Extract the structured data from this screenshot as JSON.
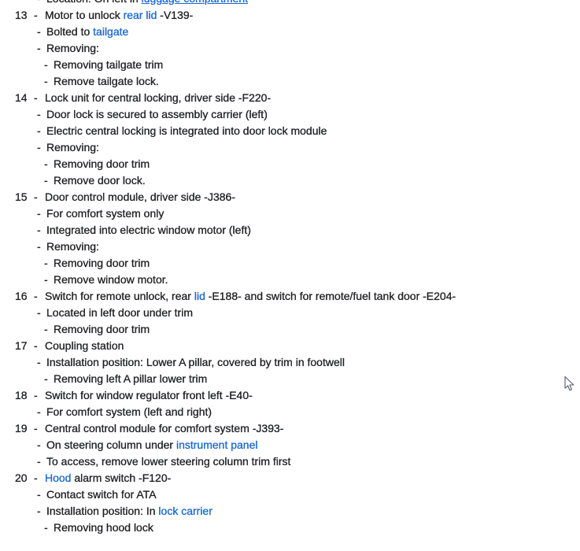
{
  "page": {
    "background": "#ffffff",
    "text_color": "#202124",
    "link_color": "#1967d2"
  },
  "cursor": {
    "icon": "arrow-pointer-icon"
  },
  "list": {
    "lines": [
      {
        "type": "sub1",
        "clipped": true,
        "segments": [
          {
            "t": "Location: On left in "
          },
          {
            "t": "luggage compartment",
            "link": true,
            "underline": true
          }
        ]
      },
      {
        "type": "item",
        "num": "13",
        "segments": [
          {
            "t": "Motor to unlock "
          },
          {
            "t": "rear lid",
            "link": true
          },
          {
            "t": " -V139-"
          }
        ]
      },
      {
        "type": "sub1",
        "segments": [
          {
            "t": "Bolted to "
          },
          {
            "t": "tailgate",
            "link": true
          }
        ]
      },
      {
        "type": "sub1",
        "segments": [
          {
            "t": "Removing:"
          }
        ]
      },
      {
        "type": "sub2",
        "segments": [
          {
            "t": "Removing tailgate trim"
          }
        ]
      },
      {
        "type": "sub2",
        "segments": [
          {
            "t": "Remove tailgate lock."
          }
        ]
      },
      {
        "type": "item",
        "num": "14",
        "segments": [
          {
            "t": "Lock unit for central locking, driver side -F220-"
          }
        ]
      },
      {
        "type": "sub1",
        "segments": [
          {
            "t": "Door lock is secured to assembly carrier (left)"
          }
        ]
      },
      {
        "type": "sub1",
        "segments": [
          {
            "t": "Electric central locking is integrated into door lock module"
          }
        ]
      },
      {
        "type": "sub1",
        "segments": [
          {
            "t": "Removing:"
          }
        ]
      },
      {
        "type": "sub2",
        "segments": [
          {
            "t": "Removing door trim"
          }
        ]
      },
      {
        "type": "sub2",
        "segments": [
          {
            "t": "Remove door lock."
          }
        ]
      },
      {
        "type": "item",
        "num": "15",
        "segments": [
          {
            "t": "Door control module, driver side -J386-"
          }
        ]
      },
      {
        "type": "sub1",
        "segments": [
          {
            "t": "For comfort system only"
          }
        ]
      },
      {
        "type": "sub1",
        "segments": [
          {
            "t": "Integrated into electric window motor (left)"
          }
        ]
      },
      {
        "type": "sub1",
        "segments": [
          {
            "t": "Removing:"
          }
        ]
      },
      {
        "type": "sub2",
        "segments": [
          {
            "t": "Removing door trim"
          }
        ]
      },
      {
        "type": "sub2",
        "segments": [
          {
            "t": "Remove window motor."
          }
        ]
      },
      {
        "type": "item",
        "num": "16",
        "segments": [
          {
            "t": "Switch for remote unlock, rear "
          },
          {
            "t": "lid",
            "link": true
          },
          {
            "t": " -E188- and switch for remote/fuel tank door -E204-"
          }
        ]
      },
      {
        "type": "sub1",
        "segments": [
          {
            "t": "Located in left door under trim"
          }
        ]
      },
      {
        "type": "sub2",
        "segments": [
          {
            "t": "Removing door trim"
          }
        ]
      },
      {
        "type": "item",
        "num": "17",
        "segments": [
          {
            "t": "Coupling station"
          }
        ]
      },
      {
        "type": "sub1",
        "segments": [
          {
            "t": "Installation position: Lower A pillar, covered by trim in footwell"
          }
        ]
      },
      {
        "type": "sub2",
        "segments": [
          {
            "t": "Removing left A pillar lower trim"
          }
        ]
      },
      {
        "type": "item",
        "num": "18",
        "segments": [
          {
            "t": "Switch for window regulator front left -E40-"
          }
        ]
      },
      {
        "type": "sub1",
        "segments": [
          {
            "t": "For comfort system (left and right)"
          }
        ]
      },
      {
        "type": "item",
        "num": "19",
        "segments": [
          {
            "t": "Central control module for comfort system -J393-"
          }
        ]
      },
      {
        "type": "sub1",
        "segments": [
          {
            "t": "On steering column under "
          },
          {
            "t": "instrument panel",
            "link": true
          }
        ]
      },
      {
        "type": "sub1",
        "segments": [
          {
            "t": "To access, remove lower steering column trim first"
          }
        ]
      },
      {
        "type": "item",
        "num": "20",
        "segments": [
          {
            "t": "Hood",
            "link": true
          },
          {
            "t": " alarm switch -F120-"
          }
        ]
      },
      {
        "type": "sub1",
        "segments": [
          {
            "t": "Contact switch for ATA"
          }
        ]
      },
      {
        "type": "sub1",
        "segments": [
          {
            "t": "Installation position: In "
          },
          {
            "t": "lock carrier",
            "link": true
          }
        ]
      },
      {
        "type": "sub2",
        "segments": [
          {
            "t": "Removing hood lock"
          }
        ]
      }
    ]
  }
}
